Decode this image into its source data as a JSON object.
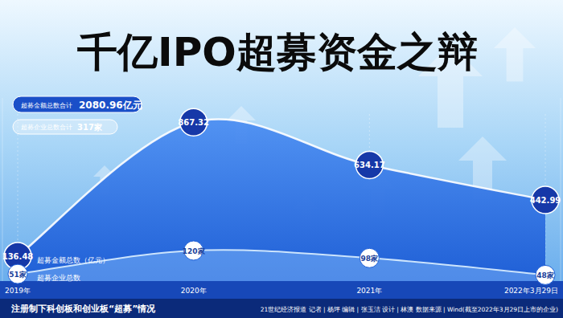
{
  "chart_data": {
    "type": "area",
    "title": "千亿IPO超募资金之辩",
    "subtitle": "注册制下科创板和创业板“超募”情况",
    "source": "21世纪经济报道 记者 | 杨坪 编辑 | 张玉洁 设计 | 林澳 数据来源 | Wind(截至2022年3月29日上市的企业)",
    "annotations": [
      {
        "label": "超募金额总数合计",
        "text": "2080.96亿元"
      },
      {
        "label": "超募企业总数合计",
        "text": "317家"
      }
    ],
    "categories": [
      "2019年",
      "2020年",
      "2021年",
      "2022年3月29日"
    ],
    "series": [
      {
        "name": "超募金额总数（亿元）",
        "color": "#1f5fd6",
        "values": [
          136.48,
          867.32,
          634.17,
          442.99
        ]
      },
      {
        "name": "超募企业总数",
        "color": "#dcefff",
        "values": [
          51,
          120,
          98,
          48
        ],
        "value_labels": [
          "51家",
          "120家",
          "98家",
          "48家"
        ],
        "axis": "y2",
        "marker": "circle"
      }
    ],
    "ylim": [
      0,
      1000
    ],
    "y2lim": [
      30,
      570
    ],
    "data_labels": true,
    "tick_labels": "x",
    "grid": false
  }
}
